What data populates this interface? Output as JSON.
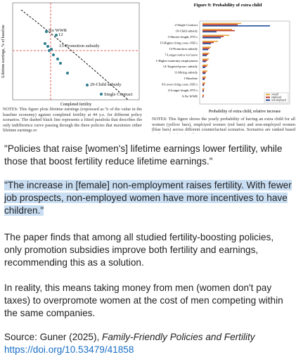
{
  "figure_left": {
    "y_label": "Lifetime earnings, % of baseline",
    "x_label": "Completed fertility",
    "point_labels": [
      "No WWR",
      "12",
      "13-Promotion subsidy",
      "20-Child subsidy",
      "Single Contract"
    ],
    "caption_lead": "NOTES:",
    "caption": "This figure plots lifetime earnings (expressed as % of the value in the baseline economy) against completed fertility at 44 y.o. for different policy scenarios. The dashed black line represents a fitted parabola that describes the only indifference curve passing through the three policies that maximize either lifetime earnings or"
  },
  "figure_right": {
    "title": "Figure 9: Probability of extra child",
    "row_labels": [
      "2-Single Contract",
      "10-Child subsidy",
      "3-Shorter length, FTCs",
      "15-Higher firing costs, OECs",
      "13-Promotion subsidy",
      "7-Longer notice for leave",
      "1-Higher maternity employment",
      "14-Targeted prom. subsidy",
      "11-Hiring subsidy",
      "1-Baseline",
      "8-Lower firing costs, OECs",
      "4-Longer length, FTCs",
      "9-No WWR"
    ],
    "legend": [
      "overall",
      "employed",
      "non-employed"
    ],
    "x_label": "Probability of extra child, relative increase",
    "caption_lead": "NOTES:",
    "caption": "This figure shows the yearly probability of having an extra child for all women (yellow bars), employed women (red bars) and non-employed women (blue bars) across different counterfactual scenarios. Scenarios are ranked based on the probability for all women."
  },
  "post": {
    "quote_1": "\"Policies that raise [women's] lifetime earnings lower fertility, while those that boost fertility reduce lifetime earnings.\"",
    "quote_2": "\"The increase in [female] non-employment raises fertility. With fewer job prospects, non-employed women have more incentives to have children.\"",
    "paragraph_1": "The paper finds that among all studied fertility-boosting policies, only promotion subsidies improve both fertility and earnings, recommending this as a solution.",
    "paragraph_2": "In reality, this means taking money from men (women don't pay taxes) to overpromote women at the cost of men competing within the same companies.",
    "source_prefix": "Source: Guner (2025), ",
    "source_title": "Family-Friendly Policies and Fertility",
    "source_link": "https://doi.org/10.53479/41858"
  }
}
